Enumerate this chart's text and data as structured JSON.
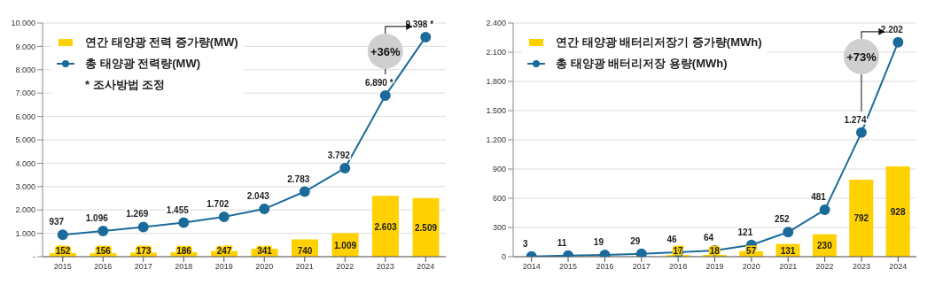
{
  "chart_data": [
    {
      "type": "bar",
      "categories": [
        "2015",
        "2016",
        "2017",
        "2018",
        "2019",
        "2020",
        "2021",
        "2022",
        "2023",
        "2024"
      ],
      "series": [
        {
          "name": "연간 태양광 전력 증가량(MW)",
          "color": "#ffd100",
          "values": [
            152,
            156,
            173,
            186,
            247,
            341,
            740,
            1009,
            2603,
            2509
          ],
          "value_labels": [
            "152",
            "156",
            "173",
            "186",
            "247",
            "341",
            "740",
            "1.009",
            "2.603",
            "2.509"
          ]
        },
        {
          "type": "line",
          "name": "총 태양광 전력량(MW)",
          "color": "#1b6b9a",
          "values": [
            937,
            1096,
            1269,
            1455,
            1702,
            2043,
            2783,
            3792,
            6890,
            9398
          ],
          "value_labels": [
            "937",
            "1.096",
            "1.269",
            "1.455",
            "1.702",
            "2.043",
            "2.783",
            "3.792",
            "6.890 *",
            "9.398 *"
          ]
        }
      ],
      "ylim": [
        0,
        10000
      ],
      "yticks": [
        {
          "value": 0,
          "label": "-"
        },
        {
          "value": 1000,
          "label": "1.000"
        },
        {
          "value": 2000,
          "label": "2.000"
        },
        {
          "value": 3000,
          "label": "3.000"
        },
        {
          "value": 4000,
          "label": "4.000"
        },
        {
          "value": 5000,
          "label": "5.000"
        },
        {
          "value": 6000,
          "label": "6.000"
        },
        {
          "value": 7000,
          "label": "7.000"
        },
        {
          "value": 8000,
          "label": "8.000"
        },
        {
          "value": 9000,
          "label": "9.000"
        },
        {
          "value": 10000,
          "label": "10.000"
        }
      ],
      "grid": "y",
      "legend": "top left",
      "marker": "circle",
      "line_style": "solid",
      "annotations": [
        "+36%",
        "* 조사방법 조정"
      ]
    },
    {
      "type": "bar",
      "categories": [
        "2014",
        "2015",
        "2016",
        "2017",
        "2018",
        "2019",
        "2020",
        "2021",
        "2022",
        "2023",
        "2024"
      ],
      "series": [
        {
          "name": "연간 태양광 배터리저장기 증가량(MWh)",
          "color": "#ffd100",
          "values": [
            null,
            null,
            null,
            null,
            17,
            18,
            57,
            131,
            230,
            792,
            928
          ],
          "value_labels": [
            null,
            null,
            null,
            null,
            "17",
            "18",
            "57",
            "131",
            "230",
            "792",
            "928"
          ]
        },
        {
          "type": "line",
          "name": "총 태양광 배터리저장 용량(MWh)",
          "color": "#1b6b9a",
          "values": [
            3,
            11,
            19,
            29,
            46,
            64,
            121,
            252,
            481,
            1274,
            2202
          ],
          "value_labels": [
            "3",
            "11",
            "19",
            "29",
            "46",
            "64",
            "121",
            "252",
            "481",
            "1.274",
            "2.202"
          ]
        }
      ],
      "ylim": [
        0,
        2400
      ],
      "yticks": [
        0,
        300,
        600,
        900,
        {
          "value": 1200,
          "label": "1.200"
        },
        {
          "value": 1500,
          "label": "1.500"
        },
        {
          "value": 1800,
          "label": "1.800"
        },
        {
          "value": 2100,
          "label": "2.100"
        },
        {
          "value": 2400,
          "label": "2.400"
        }
      ],
      "grid": "y",
      "legend": "top left",
      "marker": "circle",
      "line_style": "solid",
      "annotations": [
        "+73%"
      ]
    }
  ]
}
